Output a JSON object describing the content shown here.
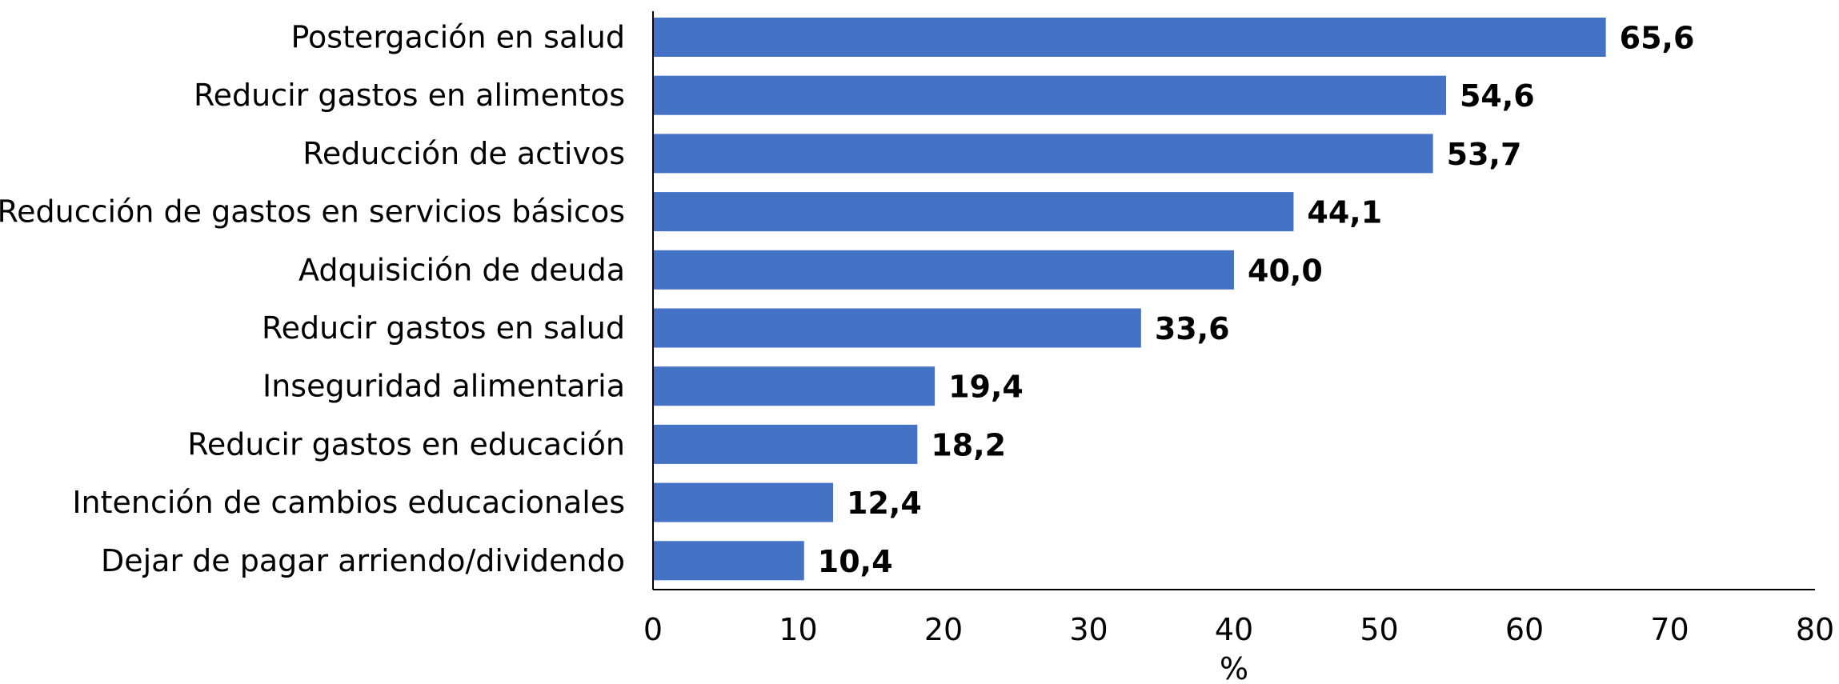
{
  "chart_data": {
    "type": "bar",
    "orientation": "horizontal",
    "categories": [
      "Postergación en salud",
      "Reducir gastos en alimentos",
      "Reducción de activos",
      "Reducción de gastos en servicios básicos",
      "Adquisición de deuda",
      "Reducir gastos en salud",
      "Inseguridad alimentaria",
      "Reducir gastos en educación",
      "Intención de cambios educacionales",
      "Dejar de pagar arriendo/dividendo"
    ],
    "values": [
      65.6,
      54.6,
      53.7,
      44.1,
      40.0,
      33.6,
      19.4,
      18.2,
      12.4,
      10.4
    ],
    "value_labels": [
      "65,6",
      "54,6",
      "53,7",
      "44,1",
      "40,0",
      "33,6",
      "19,4",
      "18,2",
      "12,4",
      "10,4"
    ],
    "xlabel": "%",
    "ylabel": "",
    "xlim": [
      0,
      80
    ],
    "xticks": [
      "0",
      "10",
      "20",
      "30",
      "40",
      "50",
      "60",
      "70",
      "80"
    ],
    "grid": false,
    "legend": "none",
    "bar_color": "#4472C4",
    "axis_color": "#000000"
  }
}
